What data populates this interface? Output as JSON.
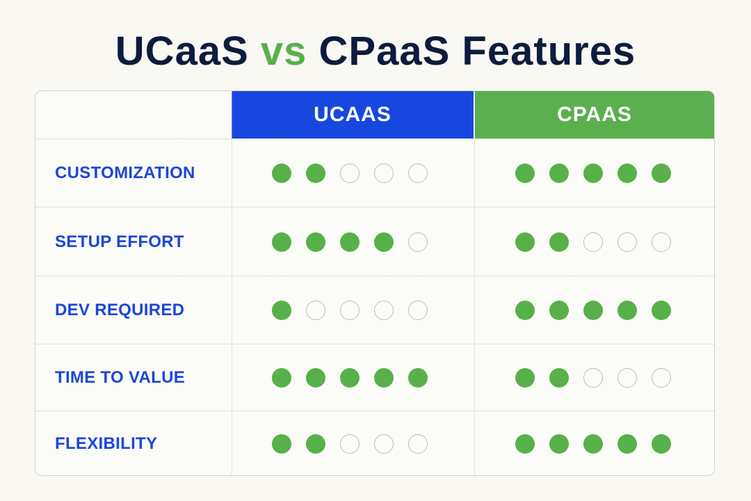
{
  "title": {
    "part1": "UCaaS",
    "part2": "vs",
    "part3": "CPaaS Features"
  },
  "columns": [
    "UCAAS",
    "CPAAS"
  ],
  "colors": {
    "ucaas_header": "#1847e0",
    "cpaas_header": "#5baf4e",
    "dot_filled": "#58b04a",
    "label": "#1c46d8",
    "title": "#0d1b3d"
  },
  "chart_data": {
    "type": "table",
    "max_score": 5,
    "columns": [
      "UCAAS",
      "CPAAS"
    ],
    "rows": [
      {
        "label": "CUSTOMIZATION",
        "ucaas": 2,
        "cpaas": 5
      },
      {
        "label": "SETUP EFFORT",
        "ucaas": 4,
        "cpaas": 2
      },
      {
        "label": "DEV REQUIRED",
        "ucaas": 1,
        "cpaas": 5
      },
      {
        "label": "TIME TO VALUE",
        "ucaas": 5,
        "cpaas": 2
      },
      {
        "label": "FLEXIBILITY",
        "ucaas": 2,
        "cpaas": 5
      }
    ]
  }
}
